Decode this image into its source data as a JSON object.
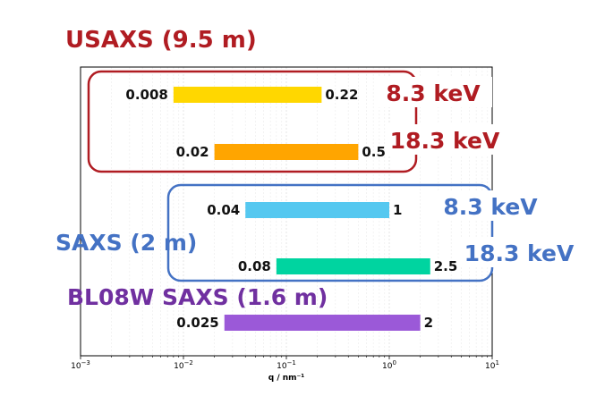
{
  "chart_data": {
    "type": "bar",
    "xscale": "log",
    "xlim": [
      0.001,
      10
    ],
    "xlabel": "q / nm⁻¹",
    "x_ticks": [
      {
        "value": 0.001,
        "base": "10",
        "exp": "−3"
      },
      {
        "value": 0.01,
        "base": "10",
        "exp": "−2"
      },
      {
        "value": 0.1,
        "base": "10",
        "exp": "−1"
      },
      {
        "value": 1,
        "base": "10",
        "exp": "0"
      },
      {
        "value": 10,
        "base": "10",
        "exp": "1"
      }
    ],
    "grid": true,
    "groups": [
      {
        "name": "USAXS (9.5 m)",
        "color": "#b01c22",
        "box_color": "#b01c22",
        "rows": [
          0,
          1
        ]
      },
      {
        "name": "SAXS (2 m)",
        "color": "#4472c4",
        "box_color": "#4472c4",
        "rows": [
          2,
          3
        ]
      },
      {
        "name": "BL08W SAXS (1.6 m)",
        "color": "#7030a0",
        "rows": [
          4
        ]
      }
    ],
    "ranges": [
      {
        "min": 0.008,
        "max": 0.22,
        "min_label": "0.008",
        "max_label": "0.22",
        "energy": "8.3 keV",
        "color": "#ffd700",
        "energy_color": "#b01c22"
      },
      {
        "min": 0.02,
        "max": 0.5,
        "min_label": "0.02",
        "max_label": "0.5",
        "energy": "18.3 keV",
        "color": "#ffa500",
        "energy_color": "#b01c22"
      },
      {
        "min": 0.04,
        "max": 1,
        "min_label": "0.04",
        "max_label": "1",
        "energy": "8.3 keV",
        "color": "#55c8f0",
        "energy_color": "#4472c4"
      },
      {
        "min": 0.08,
        "max": 2.5,
        "min_label": "0.08",
        "max_label": "2.5",
        "energy": "18.3 keV",
        "color": "#00d4a0",
        "energy_color": "#4472c4"
      },
      {
        "min": 0.025,
        "max": 2,
        "min_label": "0.025",
        "max_label": "2",
        "energy": "",
        "color": "#9b59d8",
        "energy_color": "#7030a0"
      }
    ]
  }
}
